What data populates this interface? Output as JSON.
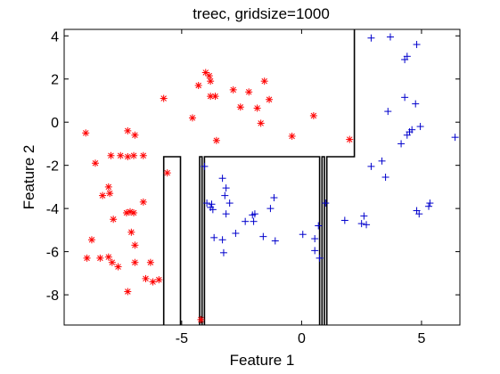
{
  "chart_data": {
    "type": "scatter",
    "title": "treec, gridsize=1000",
    "xlabel": "Feature 1",
    "ylabel": "Feature 2",
    "xlim": [
      -9.9,
      6.6
    ],
    "ylim": [
      -9.4,
      4.3
    ],
    "x_ticks": [
      -5,
      0,
      5
    ],
    "y_ticks": [
      4,
      2,
      0,
      -2,
      -4,
      -6,
      -8
    ],
    "grid": false,
    "legend": "none",
    "colors": {
      "class1": "#ff0000",
      "class2": "#0000cc",
      "boundary": "#000000",
      "frame": "#000000"
    },
    "series": [
      {
        "marker": "asterisk",
        "color": "#ff0000",
        "points": [
          [
            -9.0,
            -0.5
          ],
          [
            -8.6,
            -1.9
          ],
          [
            -8.3,
            -3.4
          ],
          [
            -8.05,
            -3.0
          ],
          [
            -8.0,
            -3.3
          ],
          [
            -7.85,
            -4.5
          ],
          [
            -8.75,
            -5.45
          ],
          [
            -8.95,
            -6.3
          ],
          [
            -8.4,
            -6.3
          ],
          [
            -8.05,
            -6.25
          ],
          [
            -7.9,
            -6.5
          ],
          [
            -7.65,
            -6.7
          ],
          [
            -7.95,
            -1.55
          ],
          [
            -7.55,
            -1.55
          ],
          [
            -7.25,
            -1.6
          ],
          [
            -7.0,
            -1.55
          ],
          [
            -6.6,
            -1.55
          ],
          [
            -7.25,
            -0.4
          ],
          [
            -6.95,
            -0.6
          ],
          [
            -7.3,
            -4.2
          ],
          [
            -7.15,
            -4.15
          ],
          [
            -7.0,
            -4.2
          ],
          [
            -7.1,
            -5.1
          ],
          [
            -6.95,
            -5.7
          ],
          [
            -6.95,
            -6.5
          ],
          [
            -6.6,
            -3.7
          ],
          [
            -7.25,
            -7.85
          ],
          [
            -6.3,
            -6.5
          ],
          [
            -6.5,
            -7.25
          ],
          [
            -6.2,
            -7.4
          ],
          [
            -5.95,
            -7.3
          ],
          [
            -5.75,
            1.1
          ],
          [
            -4.55,
            0.2
          ],
          [
            -4.3,
            1.7
          ],
          [
            -4.0,
            2.3
          ],
          [
            -3.85,
            2.15
          ],
          [
            -3.8,
            1.9
          ],
          [
            -3.8,
            1.2
          ],
          [
            -3.6,
            1.2
          ],
          [
            -3.55,
            -0.85
          ],
          [
            -2.85,
            1.5
          ],
          [
            -2.55,
            0.7
          ],
          [
            -2.2,
            1.4
          ],
          [
            -1.85,
            0.65
          ],
          [
            -1.7,
            -0.05
          ],
          [
            -1.55,
            1.9
          ],
          [
            -1.35,
            1.05
          ],
          [
            -0.4,
            -0.65
          ],
          [
            0.5,
            0.3
          ],
          [
            2.0,
            -0.8
          ],
          [
            -4.2,
            -9.15
          ],
          [
            -5.6,
            -2.35
          ]
        ]
      },
      {
        "marker": "plus",
        "color": "#0000cc",
        "points": [
          [
            2.9,
            3.9
          ],
          [
            3.7,
            3.95
          ],
          [
            4.3,
            2.9
          ],
          [
            4.4,
            3.05
          ],
          [
            4.8,
            3.6
          ],
          [
            4.3,
            1.15
          ],
          [
            4.75,
            0.85
          ],
          [
            3.6,
            0.5
          ],
          [
            4.95,
            -0.2
          ],
          [
            4.15,
            -1.0
          ],
          [
            4.4,
            -0.6
          ],
          [
            4.5,
            -0.45
          ],
          [
            4.6,
            -0.35
          ],
          [
            6.4,
            -0.7
          ],
          [
            3.35,
            -1.8
          ],
          [
            2.9,
            -2.05
          ],
          [
            3.5,
            -2.55
          ],
          [
            4.8,
            -4.1
          ],
          [
            4.9,
            -4.25
          ],
          [
            5.3,
            -3.9
          ],
          [
            5.35,
            -3.75
          ],
          [
            1.0,
            -3.75
          ],
          [
            1.8,
            -4.55
          ],
          [
            2.5,
            -4.7
          ],
          [
            2.7,
            -4.75
          ],
          [
            2.6,
            -4.35
          ],
          [
            0.7,
            -4.8
          ],
          [
            0.55,
            -5.4
          ],
          [
            0.55,
            -5.95
          ],
          [
            0.75,
            -6.3
          ],
          [
            0.05,
            -5.2
          ],
          [
            -1.1,
            -5.5
          ],
          [
            -1.6,
            -5.3
          ],
          [
            -2.0,
            -4.6
          ],
          [
            -2.05,
            -4.3
          ],
          [
            -1.95,
            -4.25
          ],
          [
            -2.35,
            -4.6
          ],
          [
            -2.75,
            -5.15
          ],
          [
            -3.3,
            -5.45
          ],
          [
            -3.15,
            -4.25
          ],
          [
            -3.65,
            -5.35
          ],
          [
            -3.25,
            -6.05
          ],
          [
            -3.75,
            -3.8
          ],
          [
            -3.95,
            -3.75
          ],
          [
            -3.8,
            -3.95
          ],
          [
            -3.7,
            -4.05
          ],
          [
            -3.0,
            -3.75
          ],
          [
            -1.15,
            -3.5
          ],
          [
            -1.3,
            -4.0
          ],
          [
            -3.3,
            -2.6
          ],
          [
            -3.15,
            -3.05
          ],
          [
            -3.2,
            -3.4
          ],
          [
            -4.05,
            -2.05
          ]
        ]
      }
    ],
    "decision_boundary": [
      [
        [
          -5.75,
          -9.4
        ],
        [
          -5.75,
          -1.6
        ],
        [
          -5.05,
          -1.6
        ],
        [
          -5.05,
          -9.4
        ]
      ],
      [
        [
          -4.25,
          -9.4
        ],
        [
          -4.25,
          -1.6
        ],
        [
          -4.15,
          -1.6
        ],
        [
          -4.15,
          -9.4
        ]
      ],
      [
        [
          -4.05,
          -9.4
        ],
        [
          -4.05,
          -1.6
        ],
        [
          0.75,
          -1.6
        ],
        [
          0.75,
          -9.4
        ]
      ],
      [
        [
          0.85,
          -9.4
        ],
        [
          0.85,
          -1.6
        ],
        [
          0.95,
          -1.6
        ],
        [
          0.95,
          -9.4
        ]
      ],
      [
        [
          1.05,
          -9.4
        ],
        [
          1.05,
          -1.6
        ],
        [
          2.2,
          -1.6
        ],
        [
          2.2,
          -0.6
        ],
        [
          2.2,
          4.3
        ]
      ]
    ]
  }
}
